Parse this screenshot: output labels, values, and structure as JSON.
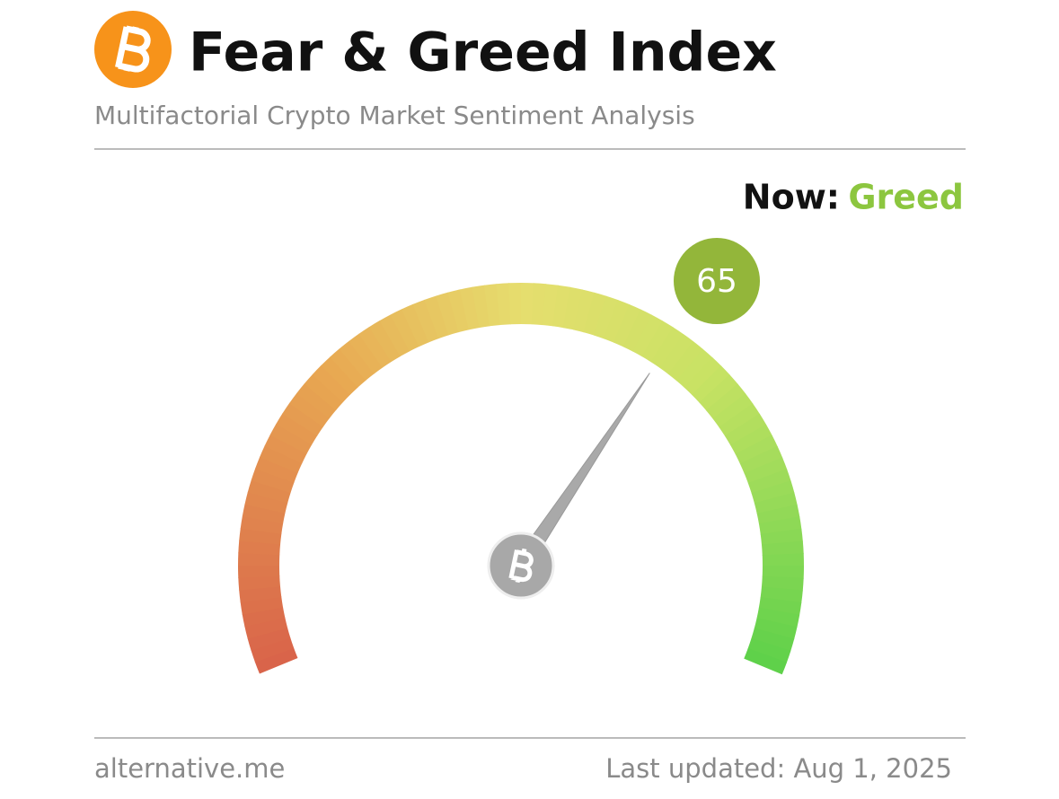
{
  "chart_data": {
    "type": "gauge",
    "title": "Fear & Greed Index",
    "subtitle": "Multifactorial Crypto Market Sentiment Analysis",
    "now_label": "Now:",
    "classification": "Greed",
    "classification_color": "#8cc63f",
    "value": 65,
    "value_color": "#93b63a",
    "ylim": [
      0,
      100
    ],
    "source": "alternative.me",
    "updated": "Last updated: Aug 1, 2025"
  }
}
